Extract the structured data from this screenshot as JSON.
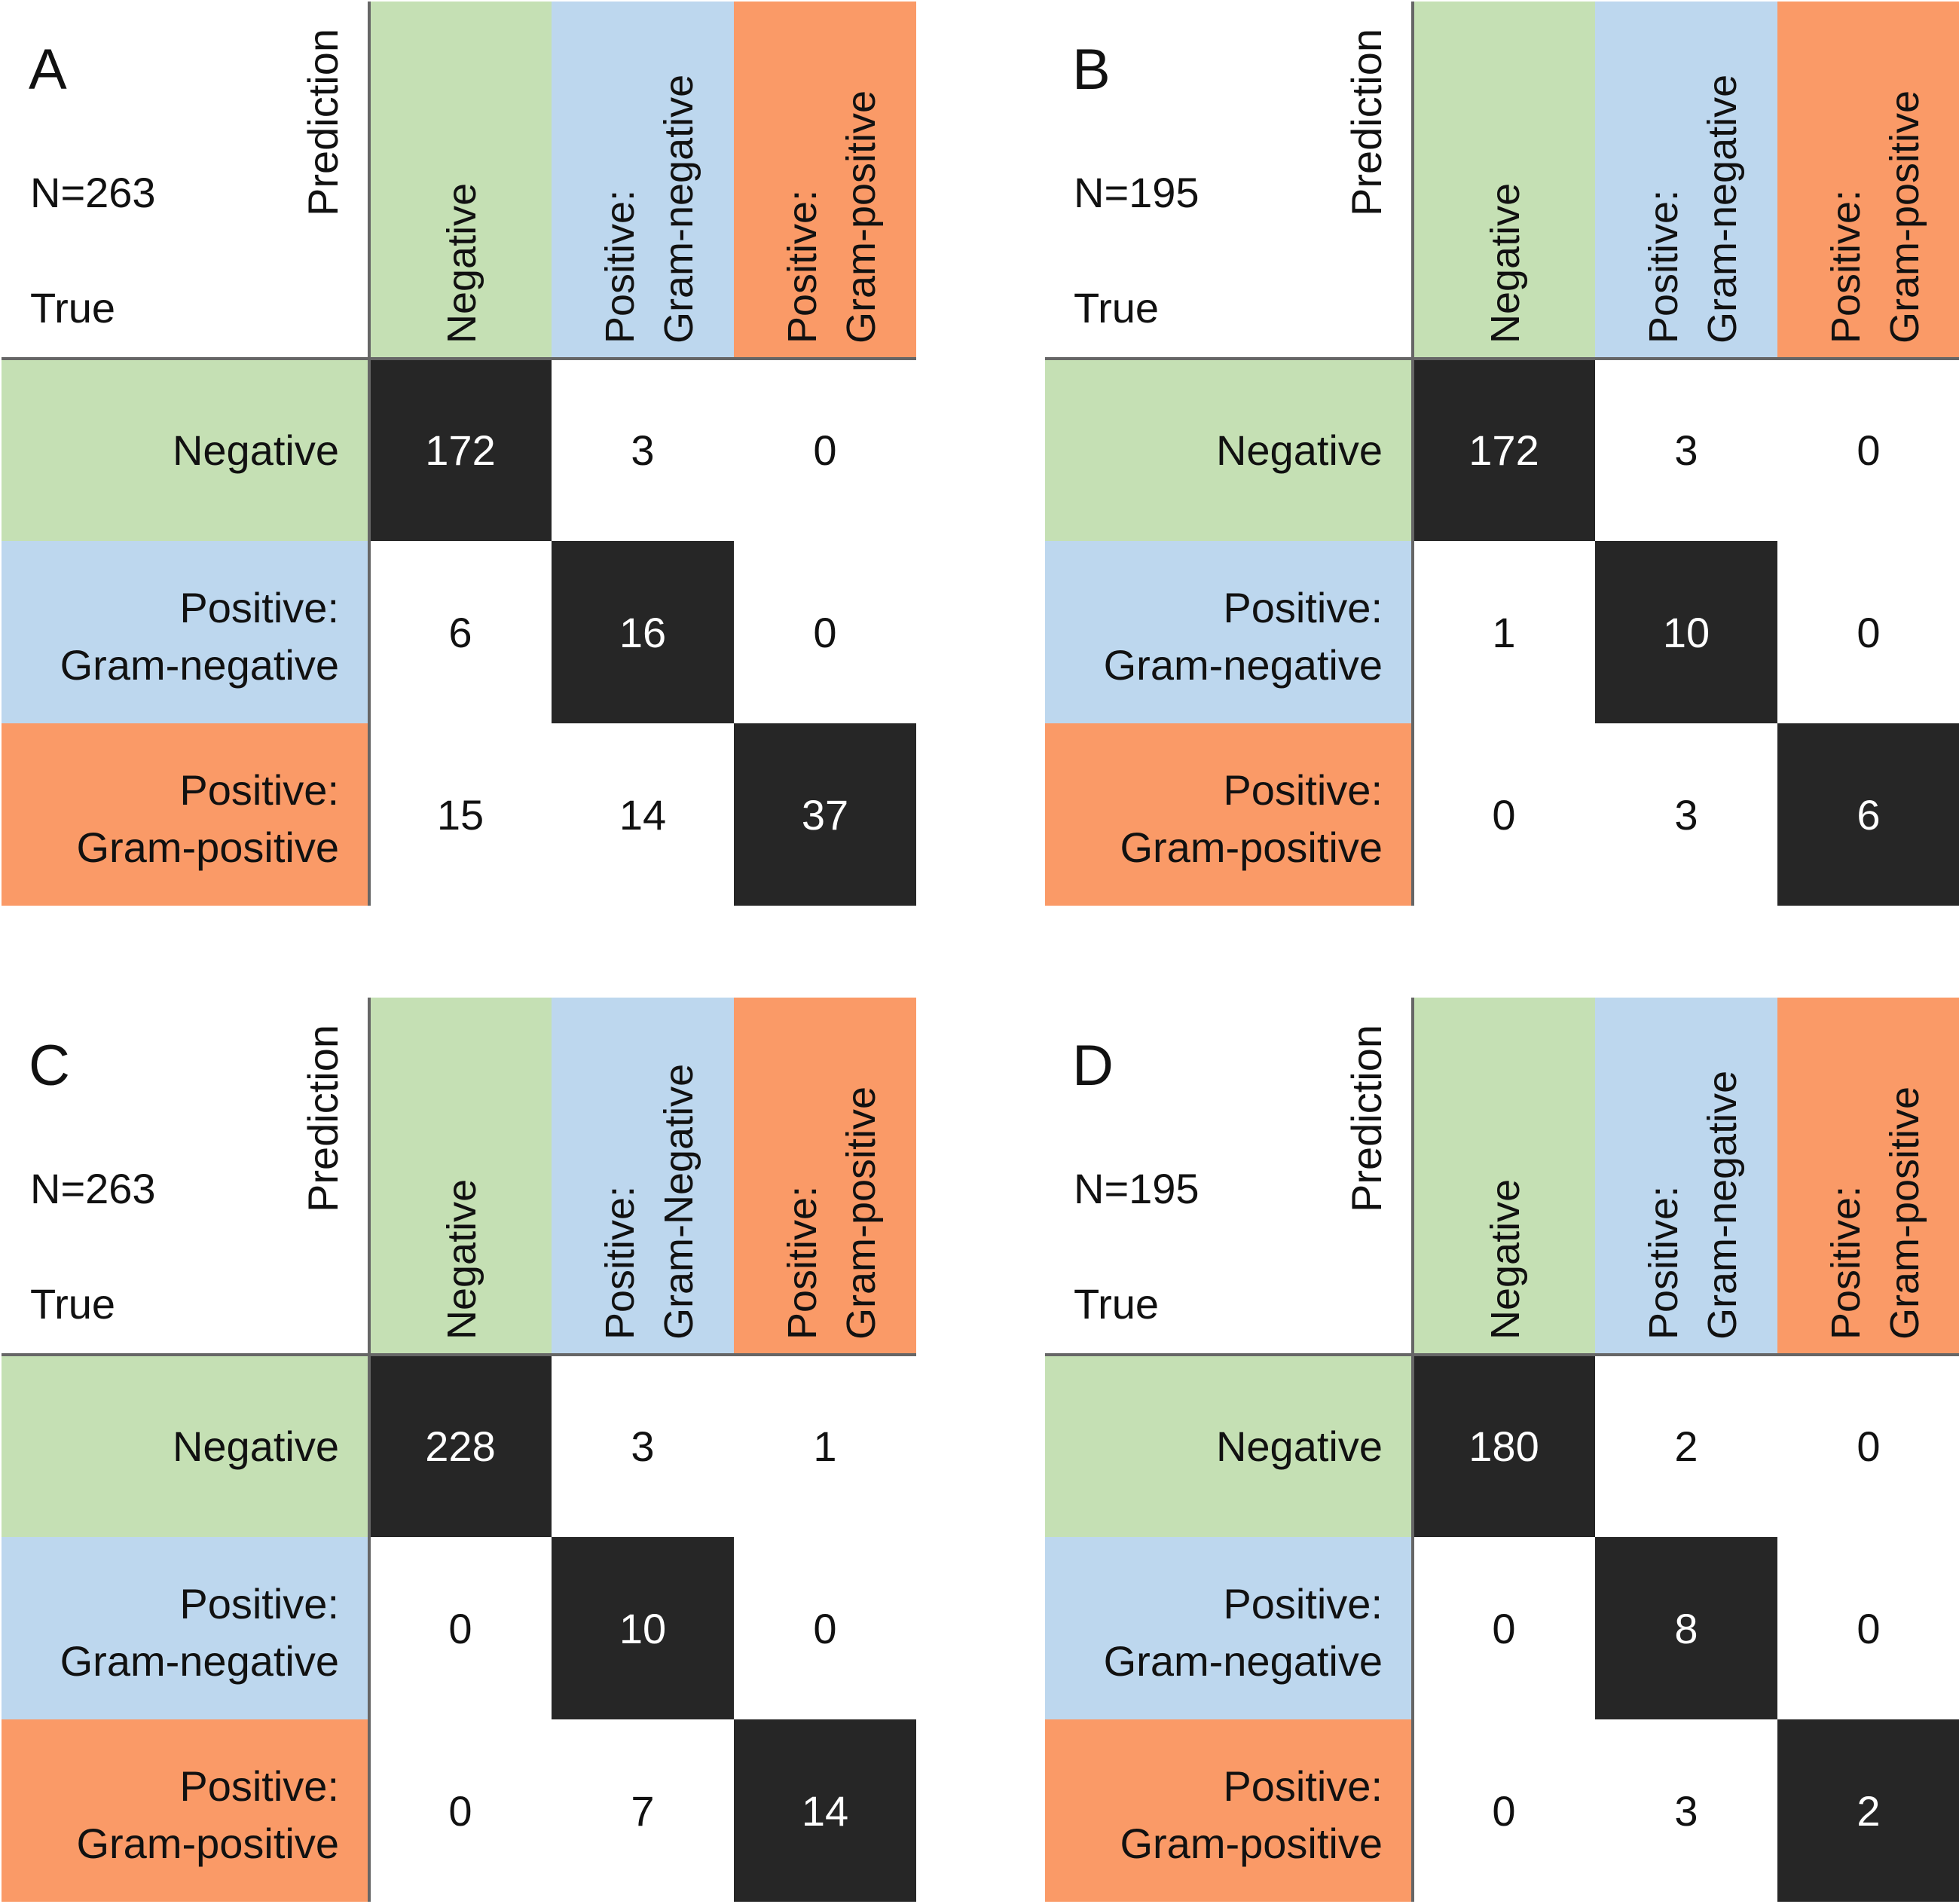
{
  "colors": {
    "negative": "#c5e0b4",
    "gram_negative": "#bdd7ee",
    "gram_positive": "#fa9a67",
    "diagonal": "#262626",
    "diagonal_text": "#ffffff",
    "offdiag_text": "#111111",
    "grid_line": "#666666"
  },
  "chart_data": [
    {
      "type": "heatmap",
      "panel": "A",
      "n_label": "N=263",
      "row_axis_label": "True",
      "col_axis_label": "Prediction",
      "column_categories": [
        {
          "line1": "Negative",
          "line2": ""
        },
        {
          "line1": "Positive:",
          "line2": "Gram-negative"
        },
        {
          "line1": "Positive:",
          "line2": "Gram-positive"
        }
      ],
      "row_categories": [
        {
          "line1": "Negative",
          "line2": ""
        },
        {
          "line1": "Positive:",
          "line2": "Gram-negative"
        },
        {
          "line1": "Positive:",
          "line2": "Gram-positive"
        }
      ],
      "matrix": [
        [
          172,
          3,
          0
        ],
        [
          6,
          16,
          0
        ],
        [
          15,
          14,
          37
        ]
      ]
    },
    {
      "type": "heatmap",
      "panel": "B",
      "n_label": "N=195",
      "row_axis_label": "True",
      "col_axis_label": "Prediction",
      "column_categories": [
        {
          "line1": "Negative",
          "line2": ""
        },
        {
          "line1": "Positive:",
          "line2": "Gram-negative"
        },
        {
          "line1": "Positive:",
          "line2": "Gram-positive"
        }
      ],
      "row_categories": [
        {
          "line1": "Negative",
          "line2": ""
        },
        {
          "line1": "Positive:",
          "line2": "Gram-negative"
        },
        {
          "line1": "Positive:",
          "line2": "Gram-positive"
        }
      ],
      "matrix": [
        [
          172,
          3,
          0
        ],
        [
          1,
          10,
          0
        ],
        [
          0,
          3,
          6
        ]
      ]
    },
    {
      "type": "heatmap",
      "panel": "C",
      "n_label": "N=263",
      "row_axis_label": "True",
      "col_axis_label": "Prediction",
      "column_categories": [
        {
          "line1": "Negative",
          "line2": ""
        },
        {
          "line1": "Positive:",
          "line2": "Gram-Negative"
        },
        {
          "line1": "Positive:",
          "line2": "Gram-positive"
        }
      ],
      "row_categories": [
        {
          "line1": "Negative",
          "line2": ""
        },
        {
          "line1": "Positive:",
          "line2": "Gram-negative"
        },
        {
          "line1": "Positive:",
          "line2": "Gram-positive"
        }
      ],
      "matrix": [
        [
          228,
          3,
          1
        ],
        [
          0,
          10,
          0
        ],
        [
          0,
          7,
          14
        ]
      ]
    },
    {
      "type": "heatmap",
      "panel": "D",
      "n_label": "N=195",
      "row_axis_label": "True",
      "col_axis_label": "Prediction",
      "column_categories": [
        {
          "line1": "Negative",
          "line2": ""
        },
        {
          "line1": "Positive:",
          "line2": "Gram-negative"
        },
        {
          "line1": "Positive:",
          "line2": "Gram-positive"
        }
      ],
      "row_categories": [
        {
          "line1": "Negative",
          "line2": ""
        },
        {
          "line1": "Positive:",
          "line2": "Gram-negative"
        },
        {
          "line1": "Positive:",
          "line2": "Gram-positive"
        }
      ],
      "matrix": [
        [
          180,
          2,
          0
        ],
        [
          0,
          8,
          0
        ],
        [
          0,
          3,
          2
        ]
      ]
    }
  ]
}
